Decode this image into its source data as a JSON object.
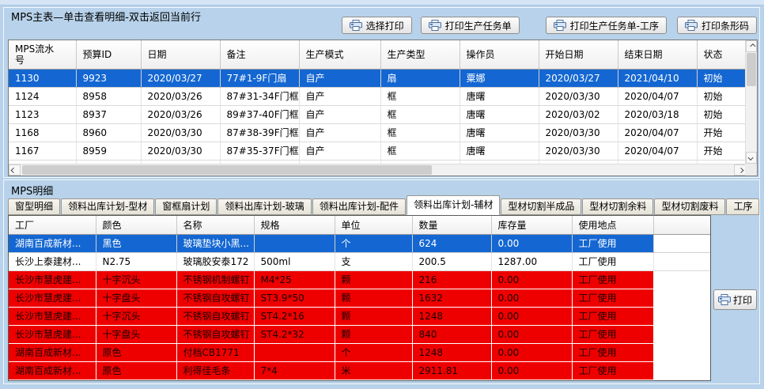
{
  "colors": {
    "background": "#b7d2ea",
    "selected_row": "#1467d2",
    "alert_row": "#ee0000"
  },
  "master": {
    "title": "MPS主表—单击查看明细-双击返回当前行",
    "toolbar_buttons": [
      {
        "label": "选择打印",
        "icon": "printer-icon"
      },
      {
        "label": "打印生产任务单",
        "icon": "printer-icon"
      },
      {
        "label": "打印生产任务单-工序",
        "icon": "printer-icon"
      },
      {
        "label": "打印条形码",
        "icon": "printer-icon"
      }
    ],
    "columns": [
      "MPS流水号",
      "预算ID",
      "日期",
      "备注",
      "生产模式",
      "生产类型",
      "操作员",
      "开始日期",
      "结束日期",
      "状态"
    ],
    "rows": [
      {
        "selected": true,
        "cells": [
          "1130",
          "9923",
          "2020/03/27",
          "77#1-9F门扇",
          "自产",
          "扇",
          "粟娜",
          "2020/03/27",
          "2021/04/10",
          "初始"
        ]
      },
      {
        "selected": false,
        "cells": [
          "1124",
          "8958",
          "2020/03/26",
          "87#31-34F门框",
          "自产",
          "框",
          "唐曙",
          "2020/03/30",
          "2020/04/07",
          "初始"
        ]
      },
      {
        "selected": false,
        "cells": [
          "1123",
          "8937",
          "2020/03/26",
          "89#37-40F门框",
          "自产",
          "框",
          "唐曙",
          "2020/03/02",
          "2020/03/18",
          "初始"
        ]
      },
      {
        "selected": false,
        "cells": [
          "1168",
          "8960",
          "2020/03/30",
          "87#38-39F门框",
          "自产",
          "框",
          "唐曙",
          "2020/03/30",
          "2020/04/07",
          "开始"
        ]
      },
      {
        "selected": false,
        "cells": [
          "1167",
          "8959",
          "2020/03/30",
          "87#35-37F门框",
          "自产",
          "框",
          "唐曙",
          "2020/03/30",
          "2020/04/07",
          "开始"
        ]
      }
    ]
  },
  "detail": {
    "title": "MPS明细",
    "tabs": [
      "窗型明细",
      "领料出库计划-型材",
      "窗框扇计划",
      "领料出库计划-玻璃",
      "领料出库计划-配件",
      "领料出库计划-辅材",
      "型材切割半成品",
      "型材切割余料",
      "型材切割废料",
      "工序"
    ],
    "active_tab": "领料出库计划-辅材",
    "columns": [
      "工厂",
      "颜色",
      "名称",
      "规格",
      "单位",
      "数量",
      "库存量",
      "使用地点"
    ],
    "rows": [
      {
        "state": "selected",
        "cells": [
          "湖南百成新材...",
          "黑色",
          "玻璃垫块小黑...",
          "",
          "个",
          "624",
          "0.00",
          "工厂使用"
        ]
      },
      {
        "state": "normal",
        "cells": [
          "长沙上泰建材...",
          "N2.75",
          "玻璃胶安泰172",
          "500ml",
          "支",
          "200.5",
          "1287.00",
          "工厂使用"
        ]
      },
      {
        "state": "alert",
        "cells": [
          "长沙市慧虎建...",
          "十字沉头",
          "不锈钢机制螺钉",
          "M4*25",
          "颗",
          "216",
          "0.00",
          "工厂使用"
        ]
      },
      {
        "state": "alert",
        "cells": [
          "长沙市慧虎建...",
          "十字盘头",
          "不锈钢自攻螺钉",
          "ST3.9*50",
          "颗",
          "1632",
          "0.00",
          "工厂使用"
        ]
      },
      {
        "state": "alert",
        "cells": [
          "长沙市慧虎建...",
          "十字沉头",
          "不锈钢自攻螺钉",
          "ST4.2*16",
          "颗",
          "1248",
          "0.00",
          "工厂使用"
        ]
      },
      {
        "state": "alert",
        "cells": [
          "长沙市慧虎建...",
          "十字盘头",
          "不锈钢自攻螺钉",
          "ST4.2*32",
          "颗",
          "840",
          "0.00",
          "工厂使用"
        ]
      },
      {
        "state": "alert",
        "cells": [
          "湖南百成新材...",
          "原色",
          "付档CB1771",
          "",
          "个",
          "1248",
          "0.00",
          "工厂使用"
        ]
      },
      {
        "state": "alert",
        "cells": [
          "湖南百成新材...",
          "原色",
          "利得佳毛条",
          "7*4",
          "米",
          "2911.81",
          "0.00",
          "工厂使用"
        ]
      }
    ],
    "print_button": {
      "label": "打印",
      "icon": "printer-icon"
    }
  }
}
